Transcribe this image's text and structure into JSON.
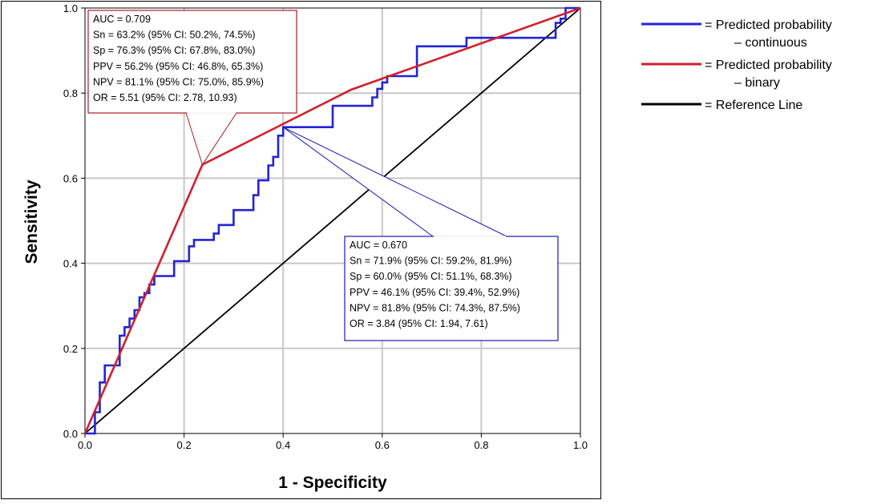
{
  "chart_data": {
    "type": "line",
    "xlabel": "1 - Specificity",
    "ylabel": "Sensitivity",
    "xlim": [
      0,
      1
    ],
    "ylim": [
      0,
      1
    ],
    "xticks": [
      "0.0",
      "0.2",
      "0.4",
      "0.6",
      "0.8",
      "1.0"
    ],
    "yticks": [
      "0.0",
      "0.2",
      "0.4",
      "0.6",
      "0.8",
      "1.0"
    ],
    "grid": true,
    "legend_position": "right",
    "series": [
      {
        "name": "Predicted probability – continuous",
        "legend_lines": [
          "= Predicted probability",
          "– continuous"
        ],
        "color": "#2323d8",
        "step": true,
        "points": [
          [
            0,
            0
          ],
          [
            0.02,
            0
          ],
          [
            0.02,
            0.05
          ],
          [
            0.03,
            0.05
          ],
          [
            0.03,
            0.12
          ],
          [
            0.04,
            0.12
          ],
          [
            0.04,
            0.16
          ],
          [
            0.07,
            0.16
          ],
          [
            0.07,
            0.23
          ],
          [
            0.08,
            0.23
          ],
          [
            0.08,
            0.25
          ],
          [
            0.09,
            0.25
          ],
          [
            0.09,
            0.27
          ],
          [
            0.1,
            0.27
          ],
          [
            0.1,
            0.29
          ],
          [
            0.11,
            0.29
          ],
          [
            0.11,
            0.32
          ],
          [
            0.12,
            0.32
          ],
          [
            0.12,
            0.33
          ],
          [
            0.13,
            0.33
          ],
          [
            0.13,
            0.35
          ],
          [
            0.14,
            0.35
          ],
          [
            0.14,
            0.37
          ],
          [
            0.18,
            0.37
          ],
          [
            0.18,
            0.405
          ],
          [
            0.21,
            0.405
          ],
          [
            0.21,
            0.44
          ],
          [
            0.22,
            0.44
          ],
          [
            0.22,
            0.455
          ],
          [
            0.26,
            0.455
          ],
          [
            0.26,
            0.47
          ],
          [
            0.27,
            0.47
          ],
          [
            0.27,
            0.49
          ],
          [
            0.3,
            0.49
          ],
          [
            0.3,
            0.525
          ],
          [
            0.34,
            0.525
          ],
          [
            0.34,
            0.56
          ],
          [
            0.35,
            0.56
          ],
          [
            0.35,
            0.595
          ],
          [
            0.37,
            0.595
          ],
          [
            0.37,
            0.63
          ],
          [
            0.38,
            0.63
          ],
          [
            0.38,
            0.65
          ],
          [
            0.39,
            0.65
          ],
          [
            0.39,
            0.7
          ],
          [
            0.4,
            0.7
          ],
          [
            0.4,
            0.72
          ],
          [
            0.5,
            0.72
          ],
          [
            0.5,
            0.77
          ],
          [
            0.58,
            0.77
          ],
          [
            0.58,
            0.79
          ],
          [
            0.59,
            0.79
          ],
          [
            0.59,
            0.81
          ],
          [
            0.6,
            0.81
          ],
          [
            0.6,
            0.825
          ],
          [
            0.61,
            0.825
          ],
          [
            0.61,
            0.84
          ],
          [
            0.67,
            0.84
          ],
          [
            0.67,
            0.91
          ],
          [
            0.77,
            0.91
          ],
          [
            0.77,
            0.93
          ],
          [
            0.95,
            0.93
          ],
          [
            0.95,
            0.965
          ],
          [
            0.96,
            0.965
          ],
          [
            0.96,
            0.975
          ],
          [
            0.97,
            0.975
          ],
          [
            0.97,
            1.0
          ],
          [
            1.0,
            1.0
          ]
        ]
      },
      {
        "name": "Predicted probability – binary",
        "legend_lines": [
          "= Predicted probability",
          "– binary"
        ],
        "color": "#d0202e",
        "step": false,
        "points": [
          [
            0,
            0
          ],
          [
            0.237,
            0.632
          ],
          [
            0.537,
            0.808
          ],
          [
            1,
            1
          ]
        ]
      },
      {
        "name": "Reference Line",
        "legend_lines": [
          "= Reference Line"
        ],
        "color": "#000000",
        "step": false,
        "points": [
          [
            0,
            0
          ],
          [
            1,
            1
          ]
        ]
      }
    ],
    "annotations": [
      {
        "color": "#b01c22",
        "lines": [
          "AUC = 0.709",
          "Sn = 63.2%  (95% CI: 50.2%, 74.5%)",
          "Sp = 76.3%  (95% CI: 67.8%, 83.0%)",
          "PPV = 56.2%  (95% CI: 46.8%, 65.3%)",
          "NPV = 81.1%  (95% CI: 75.0%, 85.9%)",
          "OR = 5.51  (95% CI: 2.78, 10.93)"
        ],
        "points_to": [
          0.237,
          0.632
        ]
      },
      {
        "color": "#1a1ab0",
        "lines": [
          "AUC = 0.670",
          "Sn = 71.9%  (95% CI: 59.2%, 81.9%)",
          "Sp = 60.0%  (95% CI: 51.1%, 68.3%)",
          "PPV = 46.1%  (95% CI: 39.4%, 52.9%)",
          "NPV = 81.8%  (95% CI: 74.3%, 87.5%)",
          "OR = 3.84  (95% CI: 1.94, 7.61)"
        ],
        "points_to": [
          0.4,
          0.72
        ]
      }
    ]
  }
}
